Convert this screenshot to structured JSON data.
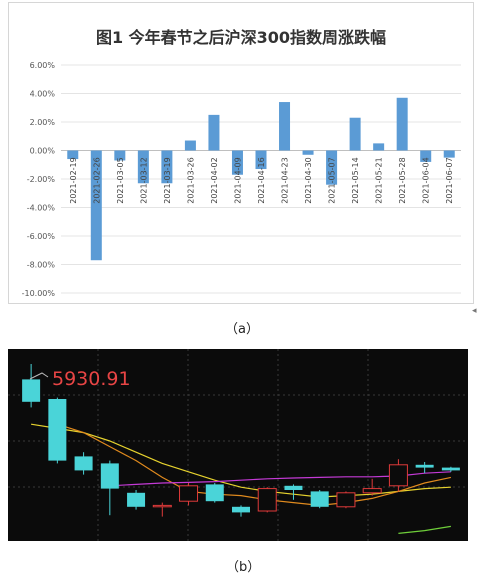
{
  "chart_data": [
    {
      "type": "bar",
      "title": "图1 今年春节之后沪深300指数周涨跌幅",
      "categories": [
        "2021-02-19",
        "2021-02-26",
        "2021-03-05",
        "2021-03-12",
        "2021-03-19",
        "2021-03-26",
        "2021-04-02",
        "2021-04-09",
        "2021-04-16",
        "2021-04-23",
        "2021-04-30",
        "2021-05-07",
        "2021-05-14",
        "2021-05-21",
        "2021-05-28",
        "2021-06-04",
        "2021-06-07"
      ],
      "values": [
        -0.6,
        -7.7,
        -0.7,
        -2.3,
        -2.3,
        0.7,
        2.5,
        -1.7,
        -1.3,
        3.4,
        -0.3,
        -2.4,
        2.3,
        0.5,
        3.7,
        -0.8,
        -0.5
      ],
      "y_ticks": [
        "6.00%",
        "4.00%",
        "2.00%",
        "0.00%",
        "-2.00%",
        "-4.00%",
        "-6.00%",
        "-8.00%",
        "-10.00%"
      ],
      "ylim": [
        -10,
        6
      ],
      "grid": true,
      "bar_color": "#5b9bd5",
      "caption": "（a）"
    },
    {
      "type": "candlestick",
      "price_label": "5930.91",
      "caption": "（b）",
      "candles": [
        {
          "open": 5880,
          "close": 5800,
          "high": 5935,
          "low": 5780,
          "color": "down"
        },
        {
          "open": 5810,
          "close": 5590,
          "high": 5815,
          "low": 5580,
          "color": "down"
        },
        {
          "open": 5605,
          "close": 5555,
          "high": 5620,
          "low": 5540,
          "color": "down"
        },
        {
          "open": 5580,
          "close": 5490,
          "high": 5590,
          "low": 5395,
          "color": "down"
        },
        {
          "open": 5475,
          "close": 5425,
          "high": 5485,
          "low": 5415,
          "color": "down"
        },
        {
          "open": 5425,
          "close": 5430,
          "high": 5440,
          "low": 5390,
          "color": "up"
        },
        {
          "open": 5445,
          "close": 5500,
          "high": 5510,
          "low": 5430,
          "color": "up"
        },
        {
          "open": 5505,
          "close": 5445,
          "high": 5510,
          "low": 5440,
          "color": "down"
        },
        {
          "open": 5425,
          "close": 5405,
          "high": 5430,
          "low": 5390,
          "color": "down"
        },
        {
          "open": 5410,
          "close": 5490,
          "high": 5495,
          "low": 5405,
          "color": "up"
        },
        {
          "open": 5500,
          "close": 5485,
          "high": 5505,
          "low": 5450,
          "color": "down"
        },
        {
          "open": 5480,
          "close": 5425,
          "high": 5485,
          "low": 5420,
          "color": "down"
        },
        {
          "open": 5425,
          "close": 5475,
          "high": 5480,
          "low": 5420,
          "color": "up"
        },
        {
          "open": 5475,
          "close": 5490,
          "high": 5525,
          "low": 5465,
          "color": "up"
        },
        {
          "open": 5500,
          "close": 5575,
          "high": 5595,
          "low": 5480,
          "color": "up"
        },
        {
          "open": 5575,
          "close": 5565,
          "high": 5585,
          "low": 5545,
          "color": "down"
        },
        {
          "open": 5565,
          "close": 5555,
          "high": 5568,
          "low": 5550,
          "color": "down"
        }
      ],
      "ma_lines": [
        {
          "color": "#e6d22e",
          "values": [
            5720,
            5705,
            5690,
            5660,
            5620,
            5580,
            5550,
            5520,
            5495,
            5480,
            5470,
            5460,
            5465,
            5470,
            5480,
            5490,
            5495
          ]
        },
        {
          "color": "#e08a1e",
          "values": [
            null,
            5720,
            5690,
            5640,
            5590,
            5530,
            5480,
            5470,
            5465,
            5450,
            5440,
            5430,
            5440,
            5455,
            5480,
            5510,
            5530
          ]
        },
        {
          "color": "#c43ad6",
          "values": [
            null,
            null,
            null,
            5500,
            5505,
            5510,
            5512,
            5515,
            5520,
            5525,
            5528,
            5530,
            5532,
            5532,
            5535,
            5545,
            5550
          ]
        },
        {
          "color": "#6fcf3a",
          "values": [
            null,
            null,
            null,
            null,
            null,
            null,
            null,
            null,
            null,
            null,
            null,
            null,
            null,
            null,
            5330,
            5340,
            5355
          ]
        }
      ],
      "price_range": [
        5310,
        5960
      ],
      "up_color": "#e03a3a",
      "down_color": "#4ad4d8"
    }
  ]
}
